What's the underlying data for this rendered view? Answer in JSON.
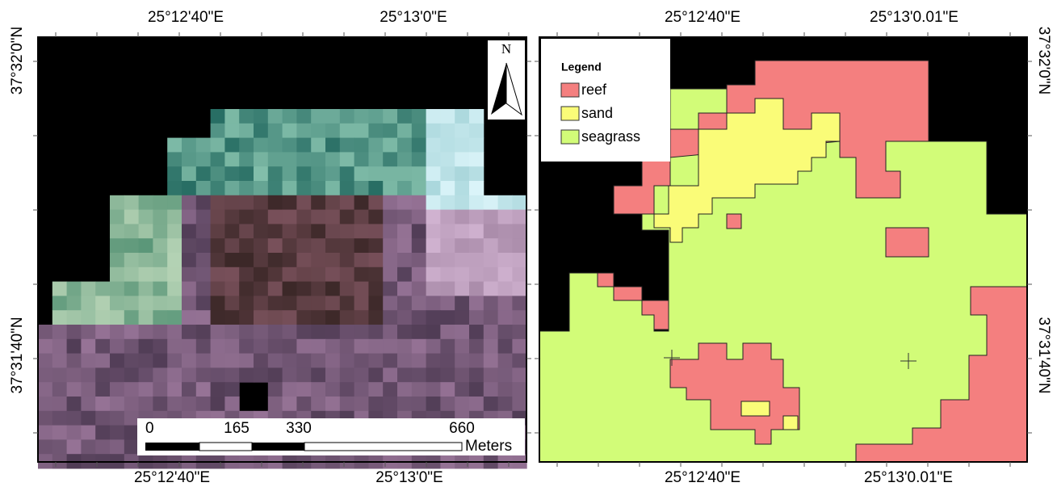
{
  "left_map": {
    "top_labels": [
      "25°12'40\"E",
      "25°13'0\"E"
    ],
    "bottom_labels": [
      "25°12'40\"E",
      "25°13'0\"E"
    ],
    "side_labels": [
      "37°32'0\"N",
      "37°31'40\"N"
    ],
    "north": "N",
    "scale_bar": {
      "labels": [
        "0",
        "165",
        "330",
        "660"
      ],
      "unit": "Meters"
    }
  },
  "right_map": {
    "top_labels": [
      "25°12'40\"E",
      "25°13'0.01\"E"
    ],
    "bottom_labels": [
      "25°12'40\"E",
      "25°13'0.01\"E"
    ],
    "side_labels": [
      "37°32'0\"N",
      "37°31'40\"N"
    ],
    "legend": {
      "title": "Legend",
      "items": [
        {
          "label": "reef",
          "color": "#f47f7f"
        },
        {
          "label": "sand",
          "color": "#fafc78"
        },
        {
          "label": "seagrass",
          "color": "#d2fc78"
        }
      ]
    }
  }
}
